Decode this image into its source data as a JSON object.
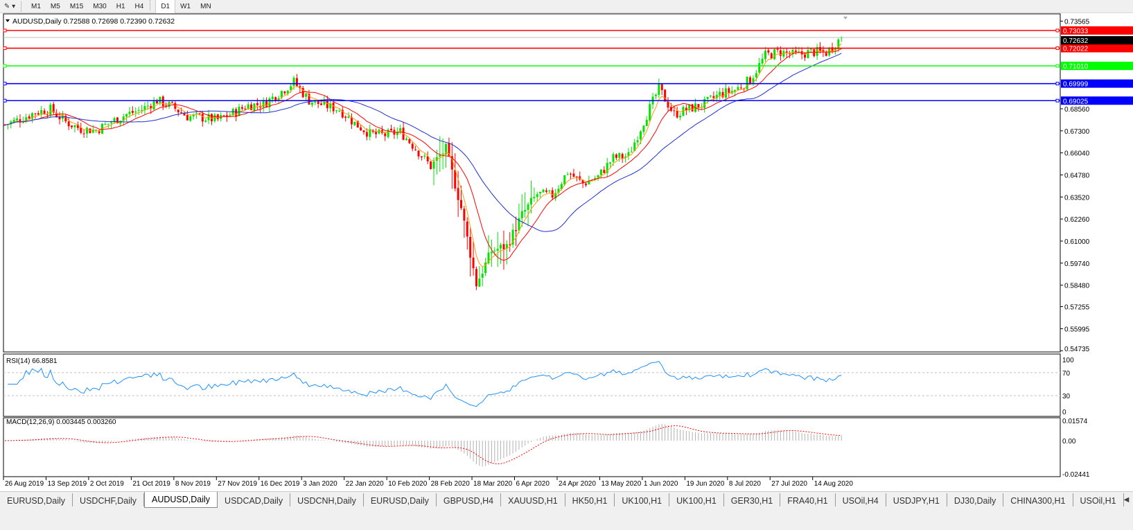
{
  "toolbar": {
    "draw_tool_icon": "line-tools-icon",
    "timeframes": [
      "M1",
      "M5",
      "M15",
      "M30",
      "H1",
      "H4",
      "D1",
      "W1",
      "MN"
    ],
    "active_timeframe": "D1"
  },
  "chart": {
    "header": "AUDUSD,Daily  0.72588 0.72698 0.72390 0.72632",
    "symbol": "AUDUSD",
    "period": "Daily",
    "ohlc": {
      "open": 0.72588,
      "high": 0.72698,
      "low": 0.7239,
      "close": 0.72632
    },
    "current_price_label": "0.72632",
    "colors": {
      "bull": "#00e400",
      "bear": "#ff0000",
      "ma_fast": "#ff9900",
      "ma_mid": "#ff0000",
      "ma_slow": "#1f2fd0",
      "rsi": "#1e90ff",
      "macd_hist": "#b0b0b0",
      "macd_signal": "#ff0000"
    },
    "price_axis": [
      "0.73565",
      "0.68560",
      "0.67300",
      "0.66040",
      "0.64780",
      "0.63520",
      "0.62260",
      "0.61000",
      "0.59740",
      "0.58480",
      "0.57255",
      "0.55995",
      "0.54735"
    ],
    "horizontal_lines": [
      {
        "price": 0.73033,
        "label": "0.73033",
        "color": "#ff0000"
      },
      {
        "price": 0.72022,
        "label": "0.72022",
        "color": "#ff0000"
      },
      {
        "price": 0.7101,
        "label": "0.71010",
        "color": "#00ff00"
      },
      {
        "price": 0.69999,
        "label": "0.69999",
        "color": "#0000ff"
      },
      {
        "price": 0.69025,
        "label": "0.69025",
        "color": "#0000ff"
      }
    ],
    "date_axis": [
      "26 Aug 2019",
      "13 Sep 2019",
      "2 Oct 2019",
      "21 Oct 2019",
      "8 Nov 2019",
      "27 Nov 2019",
      "16 Dec 2019",
      "3 Jan 2020",
      "22 Jan 2020",
      "10 Feb 2020",
      "28 Feb 2020",
      "18 Mar 2020",
      "6 Apr 2020",
      "24 Apr 2020",
      "13 May 2020",
      "1 Jun 2020",
      "19 Jun 2020",
      "8 Jul 2020",
      "27 Jul 2020",
      "14 Aug 2020"
    ],
    "weekly_closes_approx": [
      0.6765,
      0.6797,
      0.6836,
      0.6852,
      0.6781,
      0.6741,
      0.6733,
      0.6781,
      0.6824,
      0.6852,
      0.6904,
      0.6868,
      0.6812,
      0.6805,
      0.6793,
      0.6832,
      0.6876,
      0.6884,
      0.6943,
      0.701,
      0.6904,
      0.6876,
      0.6852,
      0.6773,
      0.6713,
      0.6706,
      0.6725,
      0.663,
      0.6527,
      0.6626,
      0.629,
      0.5854,
      0.6044,
      0.6072,
      0.625,
      0.6369,
      0.6361,
      0.6496,
      0.6428,
      0.6468,
      0.6575,
      0.6587,
      0.6785,
      0.6971,
      0.6824,
      0.6856,
      0.6884,
      0.6939,
      0.6963,
      0.7022,
      0.7161,
      0.7181,
      0.7161,
      0.7181,
      0.7177,
      0.72632
    ]
  },
  "rsi": {
    "label": "RSI(14) 66.8581",
    "axis": [
      "100",
      "70",
      "30",
      "0"
    ]
  },
  "macd": {
    "label": "MACD(12,26,9) 0.003445 0.003260",
    "axis": [
      "0.01574",
      "0.00",
      "-0.02441"
    ]
  },
  "tabs": [
    {
      "label": "EURUSD,Daily"
    },
    {
      "label": "USDCHF,Daily"
    },
    {
      "label": "AUDUSD,Daily",
      "active": true
    },
    {
      "label": "USDCAD,Daily"
    },
    {
      "label": "USDCNH,Daily"
    },
    {
      "label": "EURUSD,Daily"
    },
    {
      "label": "GBPUSD,H4"
    },
    {
      "label": "XAUUSD,H1"
    },
    {
      "label": "HK50,H1"
    },
    {
      "label": "UK100,H1"
    },
    {
      "label": "UK100,H1"
    },
    {
      "label": "GER30,H1"
    },
    {
      "label": "FRA40,H1"
    },
    {
      "label": "USOil,H4"
    },
    {
      "label": "USDJPY,H1"
    },
    {
      "label": "DJ30,Daily"
    },
    {
      "label": "CHINA300,H1"
    },
    {
      "label": "USOil,H1"
    }
  ]
}
